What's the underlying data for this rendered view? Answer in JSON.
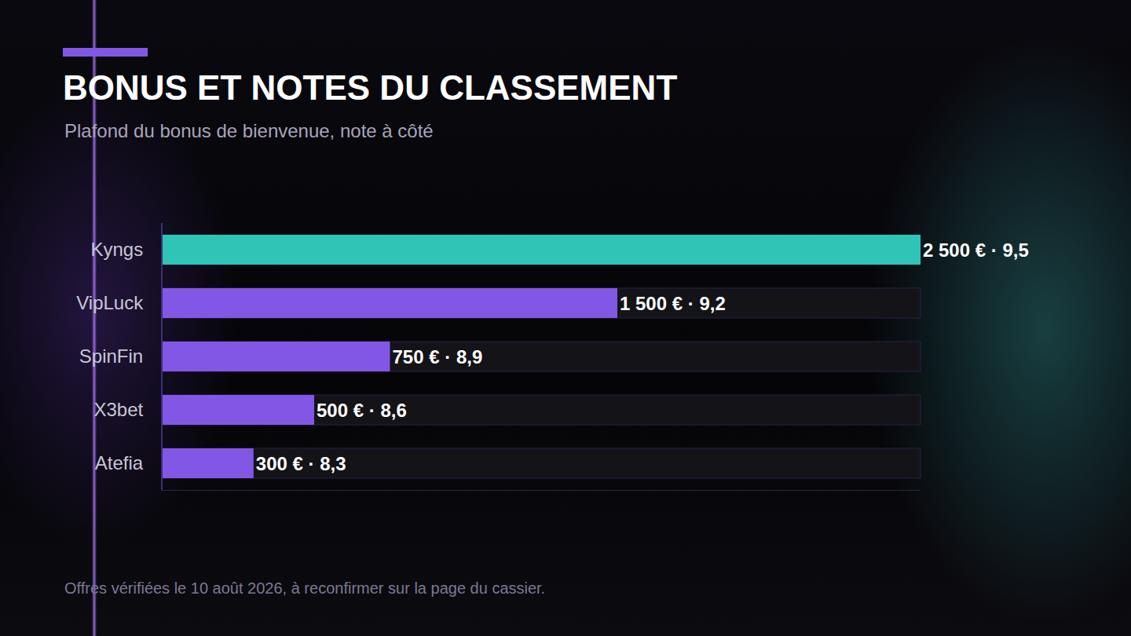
{
  "chart_data": {
    "type": "bar",
    "orientation": "horizontal",
    "title": "BONUS ET NOTES DU CLASSEMENT",
    "subtitle": "Plafond du bonus de bienvenue, note à côté",
    "categories": [
      "Kyngs",
      "VipLuck",
      "SpinFin",
      "X3bet",
      "Atefia"
    ],
    "values": [
      2500,
      1500,
      750,
      500,
      300
    ],
    "value_labels": [
      "2 500 € · 9,5",
      "1 500 € · 9,2",
      "750 € · 8,9",
      "500 € · 8,6",
      "300 € · 8,3"
    ],
    "colors": [
      "#2ec4b6",
      "#8257e5",
      "#8257e5",
      "#8257e5",
      "#8257e5"
    ],
    "data_labels": true,
    "xlim": [
      0,
      2500
    ],
    "xticks": [],
    "tick_labels": "y",
    "grid": false,
    "footnote": "Offres vérifiées le 10 août 2026, à reconfirmer sur la page du cassier."
  }
}
